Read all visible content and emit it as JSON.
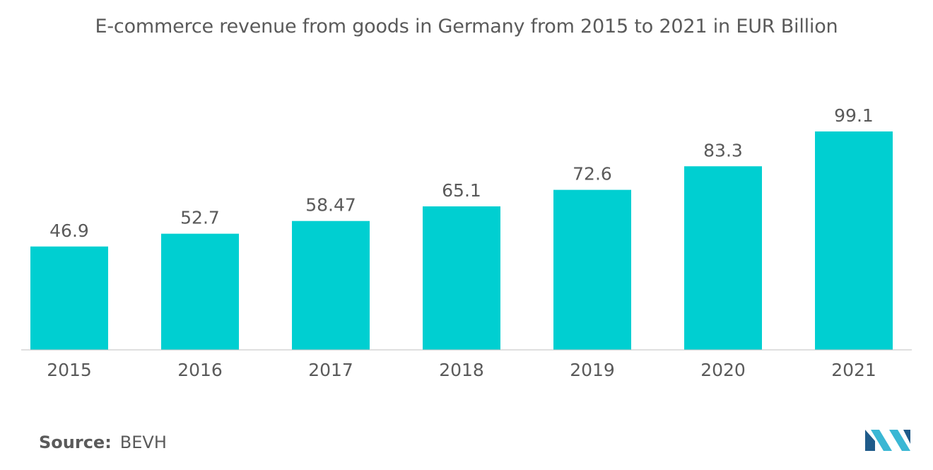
{
  "title": "E-commerce revenue from goods in Germany from 2015 to 2021 in EUR Billion",
  "source": {
    "label": "Source:",
    "value": "BEVH"
  },
  "logo": {
    "icon": "publisher-logo-icon",
    "colors": [
      "#1f5b8a",
      "#3ab7d4"
    ]
  },
  "colors": {
    "bar": "#00cfd1",
    "text": "#5a5a5a",
    "axis": "#bfbfbf"
  },
  "chart_data": {
    "type": "bar",
    "categories": [
      "2015",
      "2016",
      "2017",
      "2018",
      "2019",
      "2020",
      "2021"
    ],
    "values": [
      46.9,
      52.7,
      58.47,
      65.1,
      72.6,
      83.3,
      99.1
    ],
    "value_labels": [
      "46.9",
      "52.7",
      "58.47",
      "65.1",
      "72.6",
      "83.3",
      "99.1"
    ],
    "title": "E-commerce revenue from goods in Germany from 2015 to 2021 in EUR Billion",
    "xlabel": "",
    "ylabel": "",
    "ylim": [
      0,
      99.1
    ],
    "grid": false,
    "legend": "none"
  }
}
